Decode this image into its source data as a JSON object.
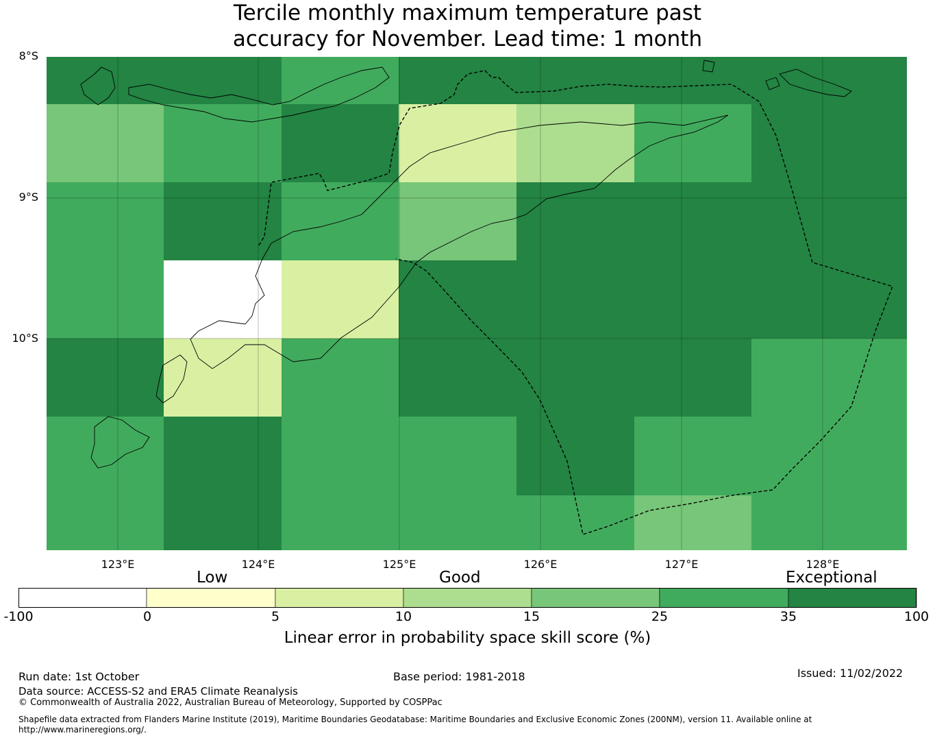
{
  "title": {
    "line1": "Tercile monthly maximum temperature past",
    "line2": "accuracy for November. Lead time: 1 month"
  },
  "map": {
    "lat_labels": [
      "8°S",
      "9°S",
      "10°S"
    ],
    "lon_labels": [
      "123°E",
      "124°E",
      "125°E",
      "126°E",
      "127°E",
      "128°E"
    ],
    "grid": {
      "rows": [
        [
          "c35",
          "c35",
          "c25",
          "c35",
          "c35",
          "c35",
          "c35"
        ],
        [
          "c15",
          "c25",
          "c35",
          "c5",
          "c10",
          "c25",
          "c35"
        ],
        [
          "c25",
          "c35",
          "c25",
          "c15",
          "c35",
          "c35",
          "c35"
        ],
        [
          "c25",
          "none",
          "c5",
          "c35",
          "c35",
          "c35",
          "c35"
        ],
        [
          "c35",
          "c5",
          "c25",
          "c35",
          "c35",
          "c35",
          "c25"
        ],
        [
          "c25",
          "c35",
          "c25",
          "c25",
          "c35",
          "c25",
          "c25"
        ],
        [
          "c25",
          "c35",
          "c25",
          "c25",
          "c25",
          "c15",
          "c25"
        ]
      ]
    },
    "eez_style": "dashed"
  },
  "colorbar": {
    "categories": [
      {
        "label": "Low"
      },
      {
        "label": "Good"
      },
      {
        "label": "Exceptional"
      }
    ],
    "bins": [
      {
        "key": "none",
        "from": -100,
        "to": 0,
        "color": "#ffffff"
      },
      {
        "key": "c0",
        "from": 0,
        "to": 5,
        "color": "#ffffcc"
      },
      {
        "key": "c5",
        "from": 5,
        "to": 10,
        "color": "#d9f0a3"
      },
      {
        "key": "c10",
        "from": 10,
        "to": 15,
        "color": "#addd8e"
      },
      {
        "key": "c15",
        "from": 15,
        "to": 25,
        "color": "#78c679"
      },
      {
        "key": "c25",
        "from": 25,
        "to": 35,
        "color": "#41ab5d"
      },
      {
        "key": "c35",
        "from": 35,
        "to": 100,
        "color": "#238443"
      }
    ],
    "tick_labels": [
      "-100",
      "0",
      "5",
      "10",
      "15",
      "25",
      "35",
      "100"
    ],
    "label": "Linear error in probability space skill score (%)"
  },
  "footer": {
    "run_date": "Run date: 1st October",
    "base_period": "Base period: 1981-2018",
    "issued": "Issued: 11/02/2022",
    "data_source": "Data source: ACCESS-S2 and ERA5 Climate Reanalysis",
    "copyright": "© Commonwealth of Australia 2022, Australian Bureau of Meteorology, Supported by COSPPac",
    "shapefile_line1": "Shapefile data extracted from Flanders Marine Institute (2019), Maritime Boundaries Geodatabase: Maritime Boundaries and Exclusive Economic Zones (200NM), version 11. Available online at",
    "shapefile_line2": "http://www.marineregions.org/."
  }
}
